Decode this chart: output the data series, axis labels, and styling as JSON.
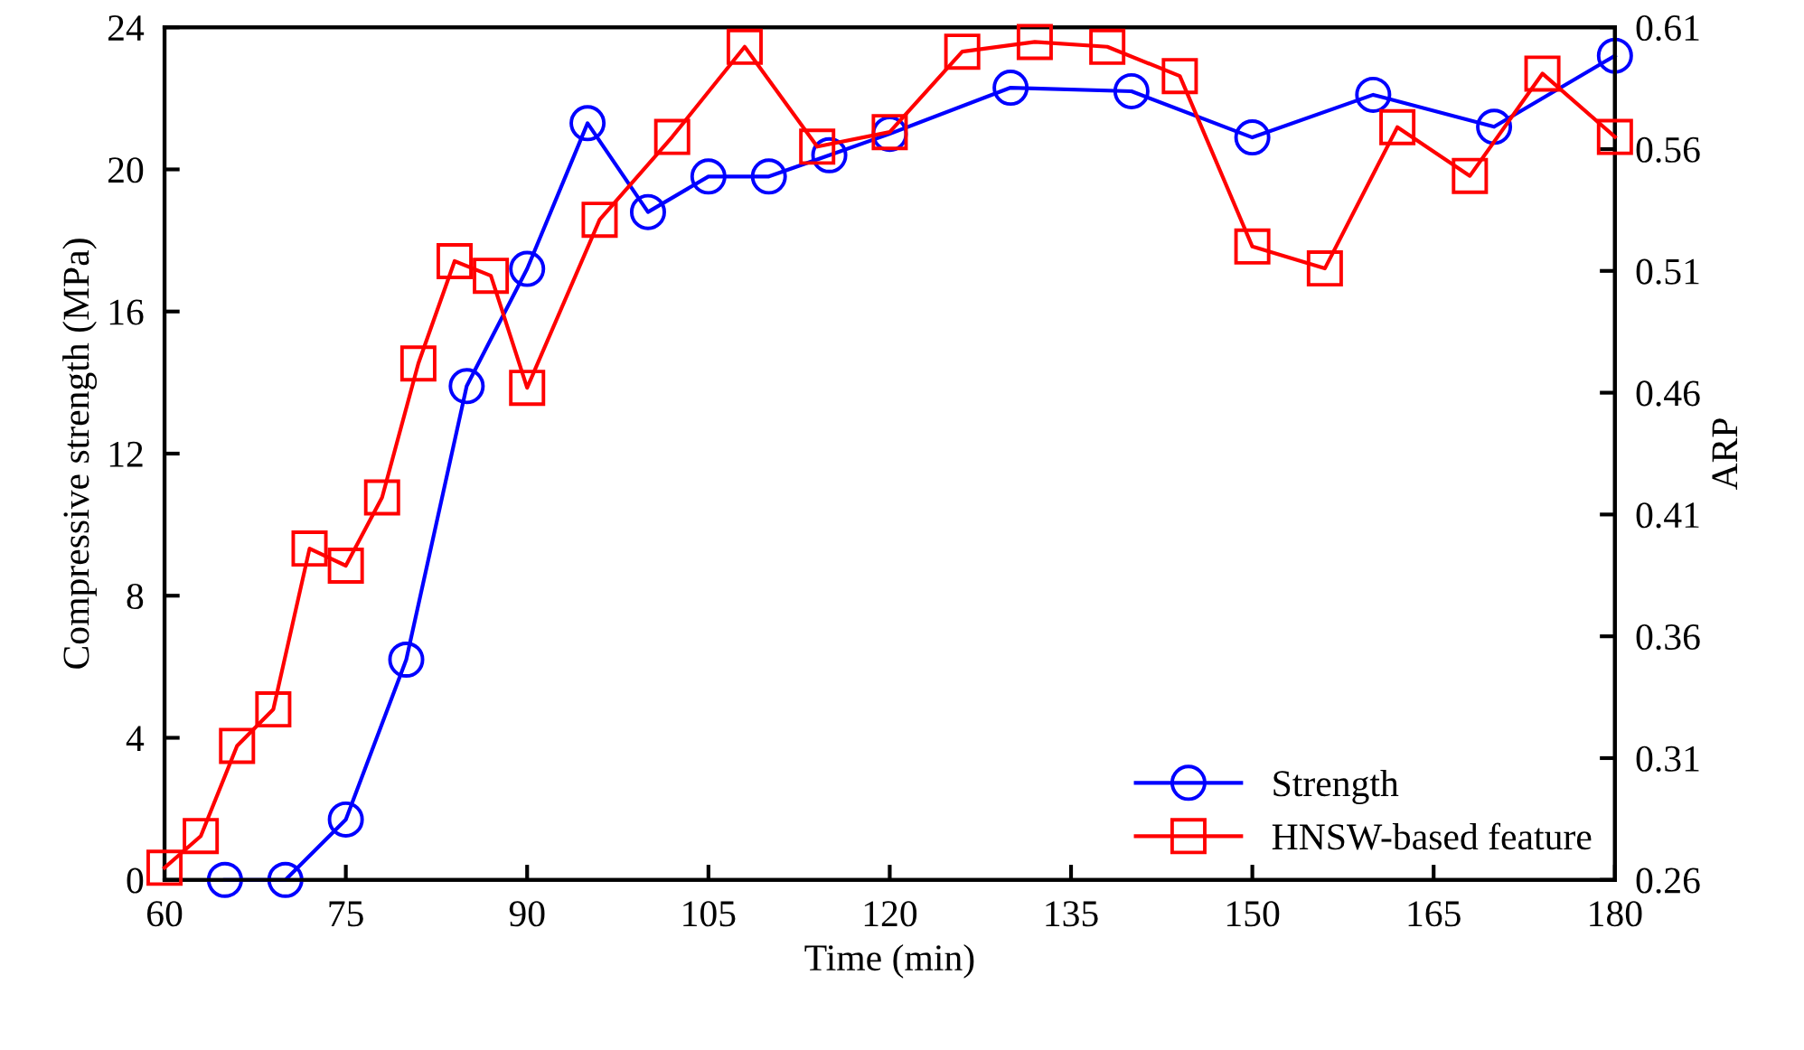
{
  "chart_data": {
    "type": "line",
    "xlabel": "Time (min)",
    "ylabel": "Compressive strength (MPa)",
    "y2label": "ARP",
    "xlim": [
      60,
      180
    ],
    "xticks": [
      60,
      75,
      90,
      105,
      120,
      135,
      150,
      165,
      180
    ],
    "ylim": [
      0,
      24
    ],
    "yticks": [
      0,
      4,
      8,
      12,
      16,
      20,
      24
    ],
    "y2lim": [
      0.26,
      0.61
    ],
    "y2ticks": [
      0.26,
      0.31,
      0.36,
      0.41,
      0.46,
      0.51,
      0.56,
      0.61
    ],
    "grid": false,
    "legend": "bottom right",
    "line_style": "solid",
    "series": [
      {
        "name": "Strength",
        "color": "#0000ff",
        "marker": "circle",
        "x": [
          65,
          70,
          75,
          80,
          85,
          90,
          95,
          100,
          105,
          110,
          115,
          120,
          130,
          140,
          150,
          160,
          170,
          180
        ],
        "values": [
          0,
          0,
          1.7,
          6.2,
          13.9,
          17.2,
          21.3,
          18.8,
          19.8,
          19.8,
          20.4,
          21.0,
          22.3,
          22.2,
          20.9,
          22.1,
          21.2,
          23.2
        ]
      },
      {
        "name": "HNSW-based feature",
        "color": "#ff0000",
        "marker": "square",
        "axis": "y2",
        "x": [
          60,
          63,
          66,
          69,
          72,
          75,
          78,
          81,
          84,
          87,
          90,
          96,
          102,
          108,
          114,
          120,
          126,
          132,
          138,
          144,
          150,
          156,
          162,
          168,
          174,
          180
        ],
        "values": [
          0.265,
          0.278,
          0.315,
          0.33,
          0.396,
          0.389,
          0.417,
          0.472,
          0.514,
          0.508,
          0.462,
          0.531,
          0.565,
          0.602,
          0.561,
          0.567,
          0.6,
          0.604,
          0.602,
          0.59,
          0.52,
          0.511,
          0.569,
          0.549,
          0.591,
          0.565
        ]
      }
    ]
  }
}
